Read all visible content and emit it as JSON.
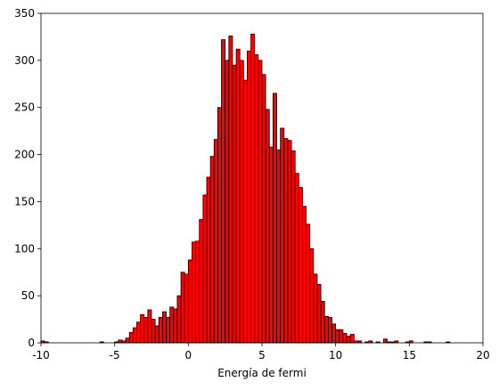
{
  "chart_data": {
    "type": "bar",
    "title": "",
    "xlabel": "Energía de fermi",
    "ylabel": "",
    "xlim": [
      -10,
      20
    ],
    "ylim": [
      0,
      350
    ],
    "x_ticks": [
      "-10",
      "-5",
      "0",
      "5",
      "10",
      "15",
      "20"
    ],
    "y_ticks": [
      "0",
      "50",
      "100",
      "150",
      "200",
      "250",
      "300",
      "350"
    ],
    "grid": false,
    "bar_color": "#ff0000",
    "edge_color": "#000000",
    "bin_width": 0.25,
    "bin_left_edges": [
      -10.0,
      -9.75,
      -6.0,
      -5.0,
      -4.75,
      -4.5,
      -4.25,
      -4.0,
      -3.75,
      -3.5,
      -3.25,
      -3.0,
      -2.75,
      -2.5,
      -2.25,
      -2.0,
      -1.75,
      -1.5,
      -1.25,
      -1.0,
      -0.75,
      -0.5,
      -0.25,
      0.0,
      0.25,
      0.5,
      0.75,
      1.0,
      1.25,
      1.5,
      1.75,
      2.0,
      2.25,
      2.5,
      2.75,
      3.0,
      3.25,
      3.5,
      3.75,
      4.0,
      4.25,
      4.5,
      4.75,
      5.0,
      5.25,
      5.5,
      5.75,
      6.0,
      6.25,
      6.5,
      6.75,
      7.0,
      7.25,
      7.5,
      7.75,
      8.0,
      8.25,
      8.5,
      8.75,
      9.0,
      9.25,
      9.5,
      9.75,
      10.0,
      10.25,
      10.5,
      10.75,
      11.0,
      11.25,
      11.5,
      12.0,
      12.25,
      12.75,
      13.25,
      13.5,
      13.75,
      14.0,
      14.75,
      15.0,
      16.0,
      16.25,
      17.5
    ],
    "values": [
      2,
      1,
      1,
      1,
      3,
      2,
      5,
      11,
      16,
      22,
      30,
      27,
      35,
      25,
      18,
      27,
      33,
      27,
      38,
      36,
      50,
      75,
      73,
      88,
      107,
      108,
      131,
      157,
      176,
      198,
      216,
      250,
      322,
      300,
      326,
      295,
      312,
      300,
      279,
      310,
      328,
      306,
      300,
      285,
      248,
      208,
      265,
      205,
      228,
      217,
      215,
      204,
      180,
      165,
      145,
      126,
      100,
      73,
      62,
      44,
      28,
      27,
      20,
      14,
      14,
      10,
      7,
      9,
      2,
      2,
      1,
      2,
      1,
      4,
      1,
      1,
      2,
      1,
      2,
      1,
      1,
      1
    ]
  }
}
